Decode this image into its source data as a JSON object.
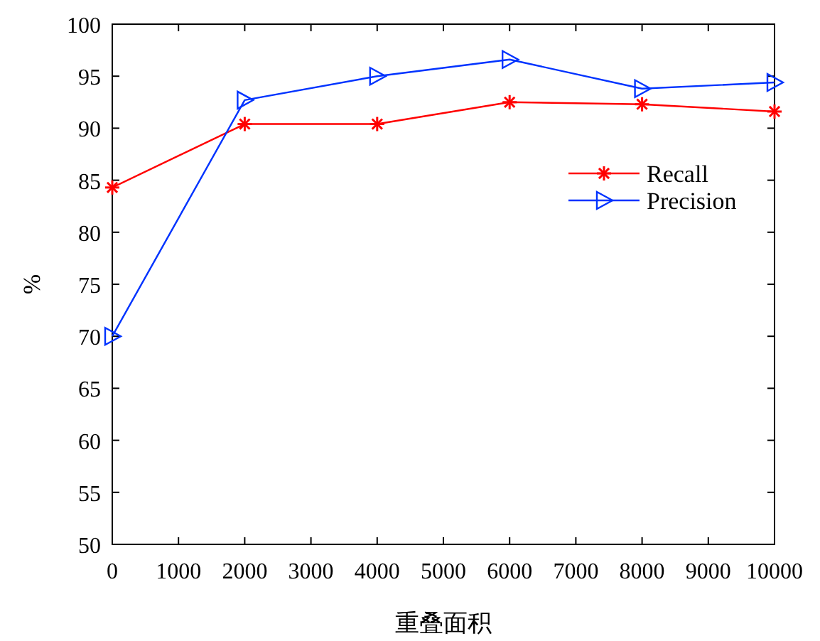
{
  "chart_data": {
    "type": "line",
    "xlabel": "重叠面积",
    "ylabel": "%",
    "x": [
      0,
      2000,
      4000,
      6000,
      8000,
      10000
    ],
    "series": [
      {
        "name": "Recall",
        "color": "#ff0000",
        "marker": "cross",
        "values": [
          84.3,
          90.4,
          90.4,
          92.5,
          92.3,
          91.6
        ]
      },
      {
        "name": "Precision",
        "color": "#0033ff",
        "marker": "triangle",
        "values": [
          70,
          92.7,
          95,
          96.6,
          93.8,
          94.4
        ]
      }
    ],
    "xlim": [
      0,
      10000
    ],
    "ylim": [
      50,
      100
    ],
    "xticks": [
      0,
      1000,
      2000,
      3000,
      4000,
      5000,
      6000,
      7000,
      8000,
      9000,
      10000
    ],
    "yticks": [
      50,
      55,
      60,
      65,
      70,
      75,
      80,
      85,
      90,
      95,
      100
    ],
    "grid": false,
    "legend": "top right",
    "line_style": "solid"
  }
}
